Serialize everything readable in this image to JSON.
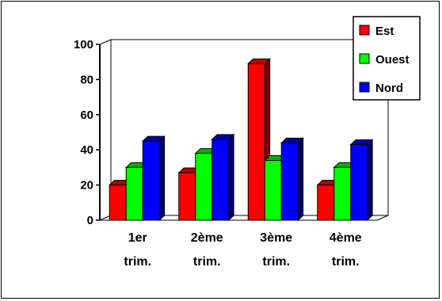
{
  "chart_data": {
    "type": "bar",
    "categories": [
      [
        "1er",
        "trim."
      ],
      [
        "2ème",
        "trim."
      ],
      [
        "3ème",
        "trim."
      ],
      [
        "4ème",
        "trim."
      ]
    ],
    "series": [
      {
        "name": "Est",
        "values": [
          20,
          27,
          89,
          20
        ],
        "color": "#ff0000"
      },
      {
        "name": "Ouest",
        "values": [
          30,
          38,
          34,
          30
        ],
        "color": "#00ff00"
      },
      {
        "name": "Nord",
        "values": [
          45,
          46,
          44,
          43
        ],
        "color": "#0000ff"
      }
    ],
    "yticks": [
      "0",
      "20",
      "40",
      "60",
      "80",
      "100"
    ],
    "ylim": [
      0,
      100
    ],
    "legend_position": "top-right",
    "grid": false,
    "style": "3d-column"
  }
}
